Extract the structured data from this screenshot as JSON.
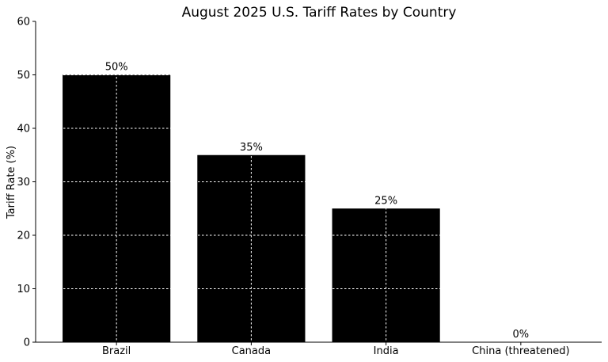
{
  "chart_data": {
    "type": "bar",
    "title": "August 2025 U.S. Tariff Rates by Country",
    "xlabel": "",
    "ylabel": "Tariff Rate (%)",
    "categories": [
      "Brazil",
      "Canada",
      "India",
      "China (threatened)"
    ],
    "values": [
      50,
      35,
      25,
      0
    ],
    "value_labels": [
      "50%",
      "35%",
      "25%",
      "0%"
    ],
    "ylim": [
      0,
      60
    ],
    "yticks": [
      0,
      10,
      20,
      30,
      40,
      50,
      60
    ],
    "ytick_labels": [
      "0",
      "10",
      "20",
      "30",
      "40",
      "50",
      "60"
    ],
    "bar_color": "#000000",
    "grid_color": "#ffffff",
    "grid": true
  }
}
